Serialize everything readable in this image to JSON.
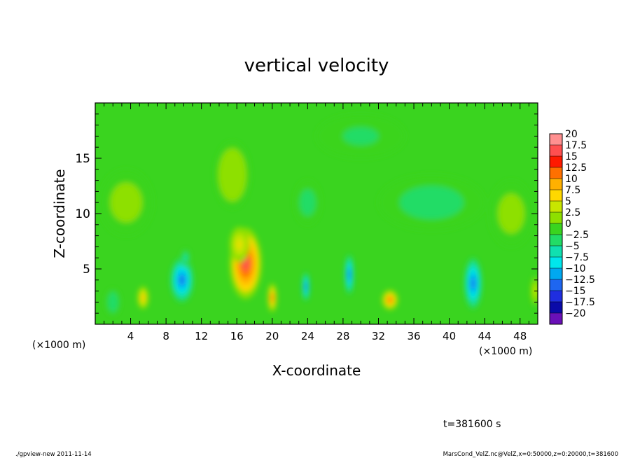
{
  "chart_data": {
    "type": "heatmap",
    "title": "vertical velocity",
    "xlabel": "X-coordinate",
    "ylabel": "Z-coordinate",
    "x_unit_left": "(×1000 m)",
    "x_unit_right": "(×1000 m)",
    "xlim": [
      0,
      50
    ],
    "ylim": [
      0,
      20
    ],
    "x_ticks": [
      {
        "value": 4,
        "label": "4"
      },
      {
        "value": 8,
        "label": "8"
      },
      {
        "value": 12,
        "label": "12"
      },
      {
        "value": 16,
        "label": "16"
      },
      {
        "value": 20,
        "label": "20"
      },
      {
        "value": 24,
        "label": "24"
      },
      {
        "value": 28,
        "label": "28"
      },
      {
        "value": 32,
        "label": "32"
      },
      {
        "value": 36,
        "label": "36"
      },
      {
        "value": 40,
        "label": "40"
      },
      {
        "value": 44,
        "label": "44"
      },
      {
        "value": 48,
        "label": "48"
      }
    ],
    "y_ticks": [
      {
        "value": 5,
        "label": "5"
      },
      {
        "value": 10,
        "label": "10"
      },
      {
        "value": 15,
        "label": "15"
      }
    ],
    "background_value": 0,
    "features": [
      {
        "x": 17,
        "z": 5.5,
        "rx": 1.8,
        "rz": 3.2,
        "value": 16
      },
      {
        "x": 16.3,
        "z": 7.2,
        "rx": 1.1,
        "rz": 1.6,
        "value": 6
      },
      {
        "x": 5.4,
        "z": 2.4,
        "rx": 0.6,
        "rz": 1.0,
        "value": 9
      },
      {
        "x": 20.0,
        "z": 2.4,
        "rx": 0.5,
        "rz": 1.3,
        "value": 13
      },
      {
        "x": 33.3,
        "z": 2.2,
        "rx": 0.9,
        "rz": 0.9,
        "value": 13
      },
      {
        "x": 49.7,
        "z": 3.0,
        "rx": 0.5,
        "rz": 1.5,
        "value": 5
      },
      {
        "x": 9.8,
        "z": 4.0,
        "rx": 1.3,
        "rz": 2.0,
        "value": -11
      },
      {
        "x": 10.2,
        "z": 6.0,
        "rx": 0.5,
        "rz": 0.8,
        "value": -5
      },
      {
        "x": 2.0,
        "z": 2.0,
        "rx": 0.8,
        "rz": 1.2,
        "value": -3
      },
      {
        "x": 23.8,
        "z": 3.4,
        "rx": 0.4,
        "rz": 1.3,
        "value": -11
      },
      {
        "x": 28.7,
        "z": 4.5,
        "rx": 0.5,
        "rz": 1.8,
        "value": -11
      },
      {
        "x": 42.7,
        "z": 3.7,
        "rx": 1.0,
        "rz": 2.3,
        "value": -12
      },
      {
        "x": 38.0,
        "z": 11.0,
        "rx": 6.0,
        "rz": 2.5,
        "value": -2
      },
      {
        "x": 24.0,
        "z": 11.0,
        "rx": 1.5,
        "rz": 2.0,
        "value": -2.5
      },
      {
        "x": 3.5,
        "z": 11.0,
        "rx": 3.0,
        "rz": 3.0,
        "value": 2.5
      },
      {
        "x": 15.5,
        "z": 13.5,
        "rx": 2.0,
        "rz": 3.0,
        "value": 3
      },
      {
        "x": 47.0,
        "z": 10.0,
        "rx": 2.5,
        "rz": 3.0,
        "value": 2.5
      },
      {
        "x": 30.0,
        "z": 17.0,
        "rx": 5.0,
        "rz": 2.0,
        "value": -1.5
      }
    ],
    "colorbar": {
      "levels": [
        "20",
        "17.5",
        "15",
        "12.5",
        "10",
        "7.5",
        "5",
        "2.5",
        "0",
        "−2.5",
        "−5",
        "−7.5",
        "−10",
        "−12.5",
        "−15",
        "−17.5",
        "−20"
      ],
      "colors": [
        "#ff9090",
        "#ff4f4f",
        "#ff1a00",
        "#ff7000",
        "#ffb000",
        "#ffd800",
        "#c8e600",
        "#8ee000",
        "#3ad41f",
        "#22dc66",
        "#10e0b0",
        "#00e6ec",
        "#00a8f0",
        "#1e66f0",
        "#1f2ee0",
        "#0a0aa8",
        "#6a10b8"
      ]
    }
  },
  "time_label": "t=381600 s",
  "footer_left": "./gpview-new   2011-11-14",
  "footer_right": "MarsCond_VelZ.nc@VelZ,x=0:50000,z=0:20000,t=381600"
}
